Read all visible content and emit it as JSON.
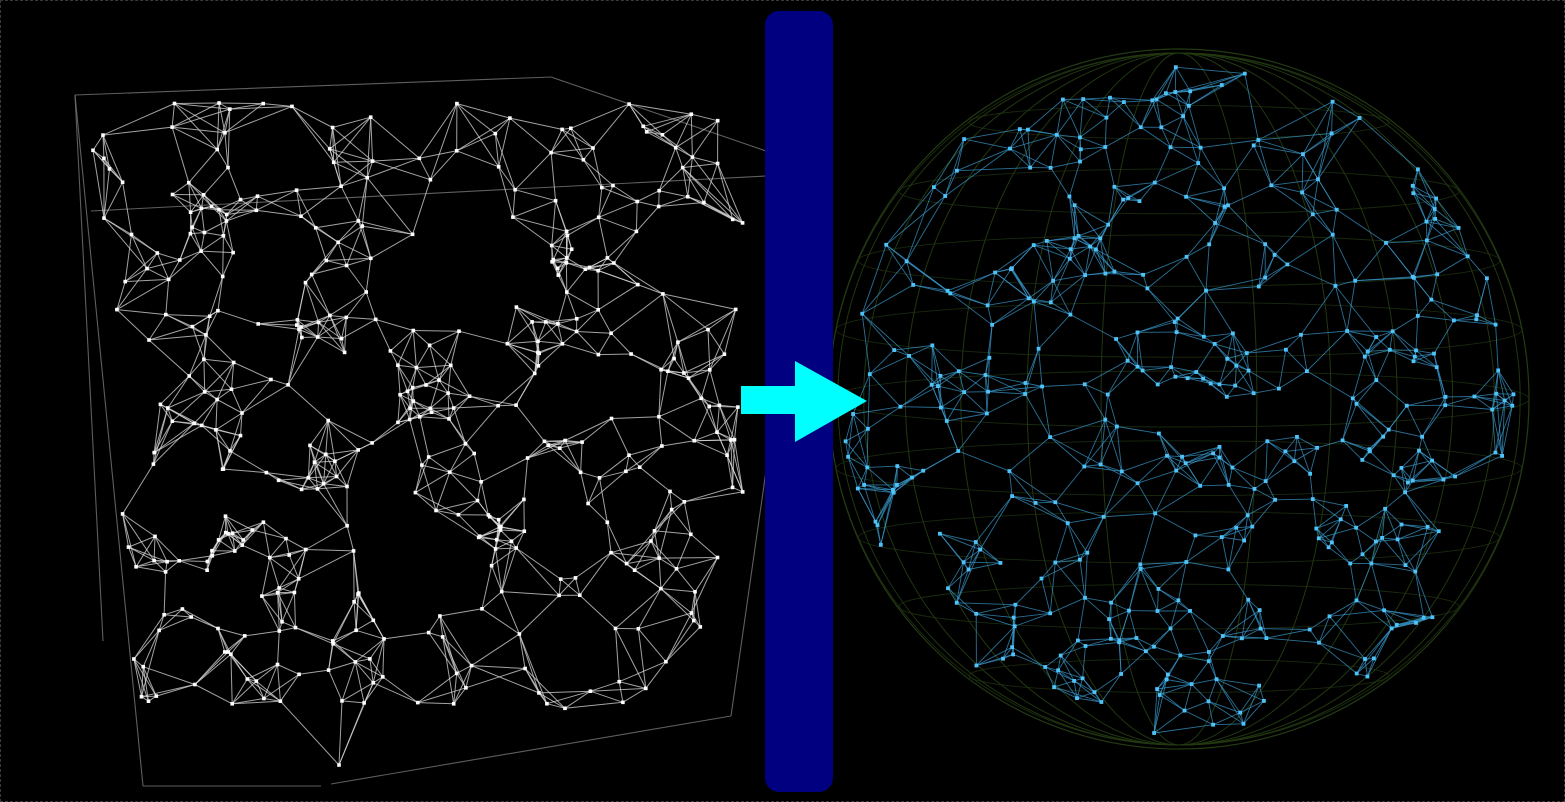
{
  "colors": {
    "background": "#000000",
    "left_nodes": "#ffffff",
    "left_edges": "#d9d9d9",
    "left_frame": "#6e6e6e",
    "right_nodes": "#4fc3f7",
    "right_edges": "#3a9fd6",
    "right_wireframe": "#233a12",
    "divider": "#000080",
    "arrow": "#00ffff"
  },
  "icons": {
    "arrow": "right-arrow-icon"
  }
}
